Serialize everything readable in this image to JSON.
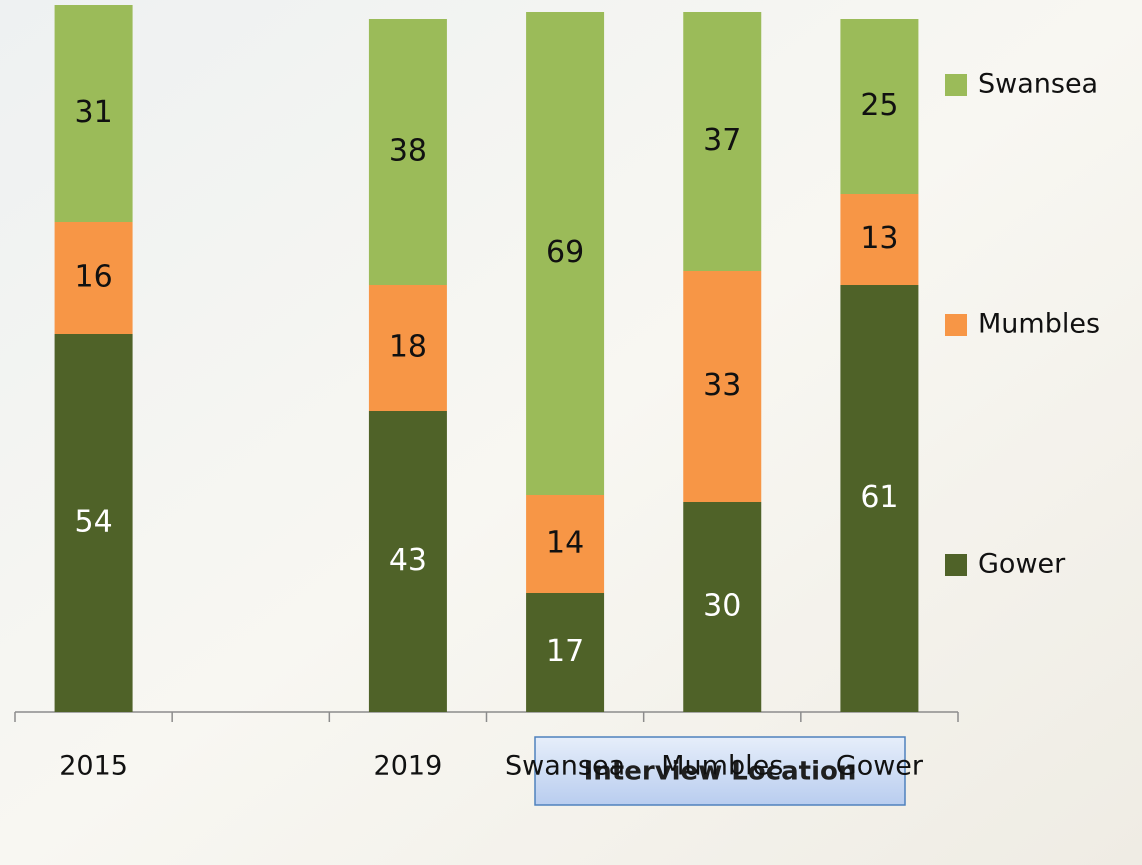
{
  "chart_data": {
    "type": "stacked_bar",
    "categories": [
      "2015",
      null,
      "2019",
      "Swansea",
      "Mumbles",
      "Gower"
    ],
    "series": [
      {
        "name": "Gower",
        "color": "#4f6228",
        "values": [
          54,
          null,
          43,
          17,
          30,
          61
        ]
      },
      {
        "name": "Mumbles",
        "color": "#f79646",
        "values": [
          16,
          null,
          18,
          14,
          33,
          13
        ]
      },
      {
        "name": "Swansea",
        "color": "#9bbb59",
        "values": [
          31,
          null,
          38,
          69,
          37,
          25
        ]
      }
    ],
    "ylim": [
      0,
      100
    ],
    "annotation": "Interview Location",
    "legend": "right"
  }
}
